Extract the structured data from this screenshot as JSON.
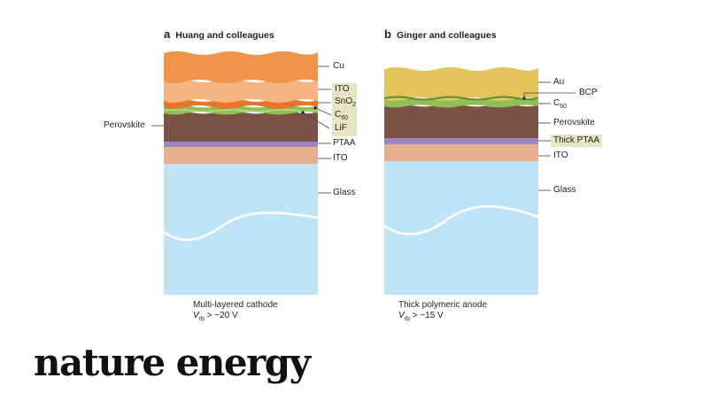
{
  "panel_a": {
    "letter": "a",
    "title": "Huang and colleagues",
    "labels": {
      "cu": "Cu",
      "ito_top": "ITO",
      "sno2_main": "SnO",
      "sno2_sub": "2",
      "c60_main": "C",
      "c60_sub": "60",
      "lif": "LiF",
      "perovskite": "Perovskite",
      "ptaa": "PTAA",
      "ito_bottom": "ITO",
      "glass": "Glass"
    },
    "caption": {
      "line1": "Multi-layered cathode",
      "v": "V",
      "v_sub": "rb",
      "value": " > −20 V"
    }
  },
  "panel_b": {
    "letter": "b",
    "title": "Ginger and colleagues",
    "labels": {
      "au": "Au",
      "bcp": "BCP",
      "c60_main": "C",
      "c60_sub": "60",
      "perovskite": "Perovskite",
      "thick_ptaa": "Thick PTAA",
      "ito": "ITO",
      "glass": "Glass"
    },
    "caption": {
      "line1": "Thick polymeric anode",
      "v": "V",
      "v_sub": "rb",
      "value": " > −15 V"
    }
  },
  "brand": "nature energy",
  "colors": {
    "cu": "#f0944a",
    "ito_top": "#f7b47e",
    "sno2": "#e8742a",
    "c60": "#8fbf55",
    "perovskite": "#7b5243",
    "ptaa": "#9b86c2",
    "ito": "#e7b08d",
    "glass": "#bfe4f6",
    "au": "#e3c35a",
    "highlight": "#e9e4c4"
  }
}
